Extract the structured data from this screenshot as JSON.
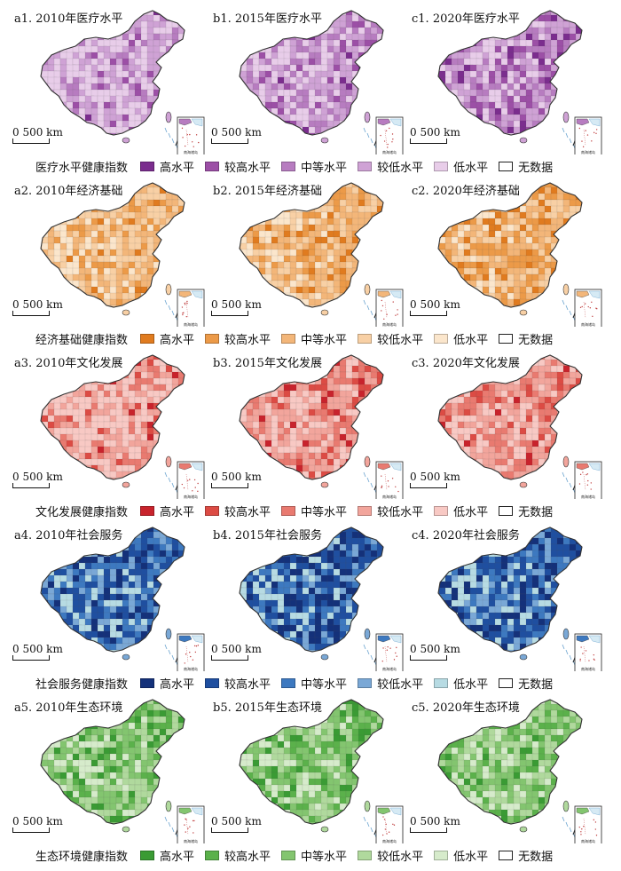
{
  "legend_labels": [
    "高水平",
    "较高水平",
    "中等水平",
    "较低水平",
    "低水平",
    "无数据"
  ],
  "inset_label": "南海诸岛",
  "scale_label": "0  500 km",
  "rows": [
    {
      "legend_title": "医疗水平健康指数",
      "colors": [
        "#7b2d8e",
        "#9c4fa6",
        "#b77cc0",
        "#cfa2d5",
        "#e8cde9"
      ],
      "panels": [
        {
          "title": "a1. 2010年医疗水平",
          "weights": [
            0.02,
            0.06,
            0.12,
            0.35,
            0.45
          ]
        },
        {
          "title": "b1. 2015年医疗水平",
          "weights": [
            0.04,
            0.1,
            0.2,
            0.33,
            0.33
          ]
        },
        {
          "title": "c1. 2020年医疗水平",
          "weights": [
            0.08,
            0.16,
            0.26,
            0.3,
            0.2
          ]
        }
      ]
    },
    {
      "legend_title": "经济基础健康指数",
      "colors": [
        "#e07b1f",
        "#ec9a48",
        "#f3b679",
        "#f8d0a5",
        "#fbe6cc"
      ],
      "panels": [
        {
          "title": "a2. 2010年经济基础",
          "weights": [
            0.04,
            0.16,
            0.34,
            0.3,
            0.16
          ]
        },
        {
          "title": "b2. 2015年经济基础",
          "weights": [
            0.06,
            0.22,
            0.36,
            0.24,
            0.12
          ]
        },
        {
          "title": "c2. 2020年经济基础",
          "weights": [
            0.14,
            0.26,
            0.3,
            0.2,
            0.1
          ]
        }
      ]
    },
    {
      "legend_title": "文化发展健康指数",
      "colors": [
        "#c8232c",
        "#dc4b44",
        "#e97a70",
        "#f2a59c",
        "#f8c9c4"
      ],
      "panels": [
        {
          "title": "a3. 2010年文化发展",
          "weights": [
            0.03,
            0.08,
            0.16,
            0.3,
            0.43
          ]
        },
        {
          "title": "b3. 2015年文化发展",
          "weights": [
            0.04,
            0.1,
            0.22,
            0.34,
            0.3
          ]
        },
        {
          "title": "c3. 2020年文化发展",
          "weights": [
            0.03,
            0.09,
            0.24,
            0.38,
            0.26
          ]
        }
      ]
    },
    {
      "legend_title": "社会服务健康指数",
      "colors": [
        "#14317a",
        "#1f4fa0",
        "#3d79c0",
        "#7aa8d6",
        "#b7dbe3"
      ],
      "panels": [
        {
          "title": "a4. 2010年社会服务",
          "weights": [
            0.16,
            0.28,
            0.24,
            0.16,
            0.16
          ]
        },
        {
          "title": "b4. 2015年社会服务",
          "weights": [
            0.2,
            0.3,
            0.22,
            0.14,
            0.14
          ]
        },
        {
          "title": "c4. 2020年社会服务",
          "weights": [
            0.18,
            0.26,
            0.24,
            0.16,
            0.16
          ]
        }
      ]
    },
    {
      "legend_title": "生态环境健康指数",
      "colors": [
        "#3a9b34",
        "#5bb14b",
        "#83c56f",
        "#b0d99d",
        "#d6ebcb"
      ],
      "panels": [
        {
          "title": "a5. 2010年生态环境",
          "weights": [
            0.08,
            0.2,
            0.28,
            0.26,
            0.18
          ]
        },
        {
          "title": "b5. 2015年生态环境",
          "weights": [
            0.1,
            0.24,
            0.28,
            0.22,
            0.16
          ]
        },
        {
          "title": "c5. 2020年生态环境",
          "weights": [
            0.06,
            0.18,
            0.28,
            0.28,
            0.2
          ]
        }
      ]
    }
  ]
}
